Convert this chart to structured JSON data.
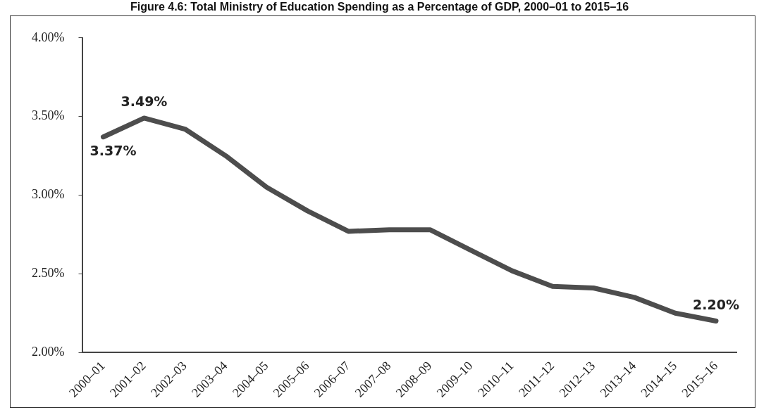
{
  "chart_data": {
    "type": "line",
    "title": "Figure 4.6: Total Ministry of Education Spending as a Percentage of GDP, 2000–01 to 2015–16",
    "categories": [
      "2000–01",
      "2001–02",
      "2002–03",
      "2003–04",
      "2004–05",
      "2005–06",
      "2006–07",
      "2007–08",
      "2008–09",
      "2009–10",
      "2010–11",
      "2011–12",
      "2012–13",
      "2013–14",
      "2014–15",
      "2015–16"
    ],
    "series": [
      {
        "color": "#4d4d4d",
        "values": [
          3.37,
          3.49,
          3.42,
          3.25,
          3.05,
          2.9,
          2.77,
          2.78,
          2.78,
          2.65,
          2.52,
          2.42,
          2.41,
          2.35,
          2.25,
          2.2
        ],
        "value_labels": [
          "3.37%",
          "3.49%",
          null,
          null,
          null,
          null,
          null,
          null,
          null,
          null,
          null,
          null,
          null,
          null,
          null,
          "2.20%"
        ]
      }
    ],
    "ylim": [
      2,
      4
    ],
    "yticks": [
      {
        "value": 2,
        "label": "2.00%"
      },
      {
        "value": 2.5,
        "label": "2.50%"
      },
      {
        "value": 3,
        "label": "3.00%"
      },
      {
        "value": 3.5,
        "label": "3.50%"
      },
      {
        "value": 4,
        "label": "4.00%"
      }
    ],
    "grid": false,
    "legend": false,
    "marker": "none",
    "line_style": "solid"
  }
}
